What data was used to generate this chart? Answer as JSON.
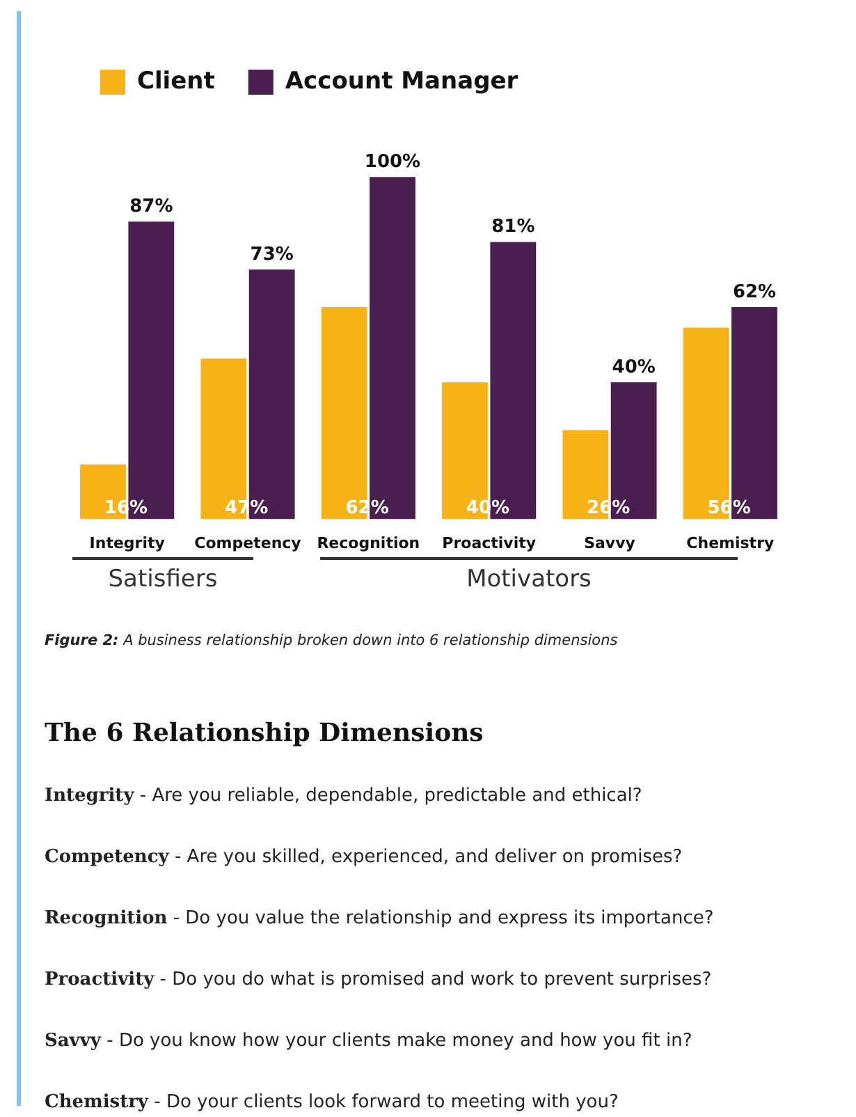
{
  "chart_data": {
    "type": "bar",
    "categories": [
      "Integrity",
      "Competency",
      "Recognition",
      "Proactivity",
      "Savvy",
      "Chemistry"
    ],
    "series": [
      {
        "name": "Client",
        "color": "#f7b217",
        "values": [
          16,
          47,
          62,
          40,
          26,
          56
        ],
        "value_labels": [
          "16%",
          "47%",
          "62%",
          "40%",
          "26%",
          "56%"
        ]
      },
      {
        "name": "Account Manager",
        "color": "#4a1f4f",
        "values": [
          87,
          73,
          100,
          81,
          40,
          62
        ],
        "value_labels": [
          "87%",
          "73%",
          "100%",
          "81%",
          "40%",
          "62%"
        ]
      }
    ],
    "legend": "top left",
    "grid": false,
    "annotations": [
      "Satisfiers",
      "Motivators",
      "Figure 2: A business relationship broken down into 6 relationship dimensions",
      "The 6 Relationship Dimensions",
      "Integrity - Are you reliable, dependable, predictable and ethical?",
      "Competency - Are you skilled, experienced, and deliver on promises?",
      "Recognition - Do you value the relationship and express its importance?",
      "Proactivity - Do you do what is promised and work to prevent surprises?",
      "Savvy - Do you know how your clients make money and how you fit in?",
      "Chemistry - Do your clients look forward to meeting with you?"
    ]
  }
}
